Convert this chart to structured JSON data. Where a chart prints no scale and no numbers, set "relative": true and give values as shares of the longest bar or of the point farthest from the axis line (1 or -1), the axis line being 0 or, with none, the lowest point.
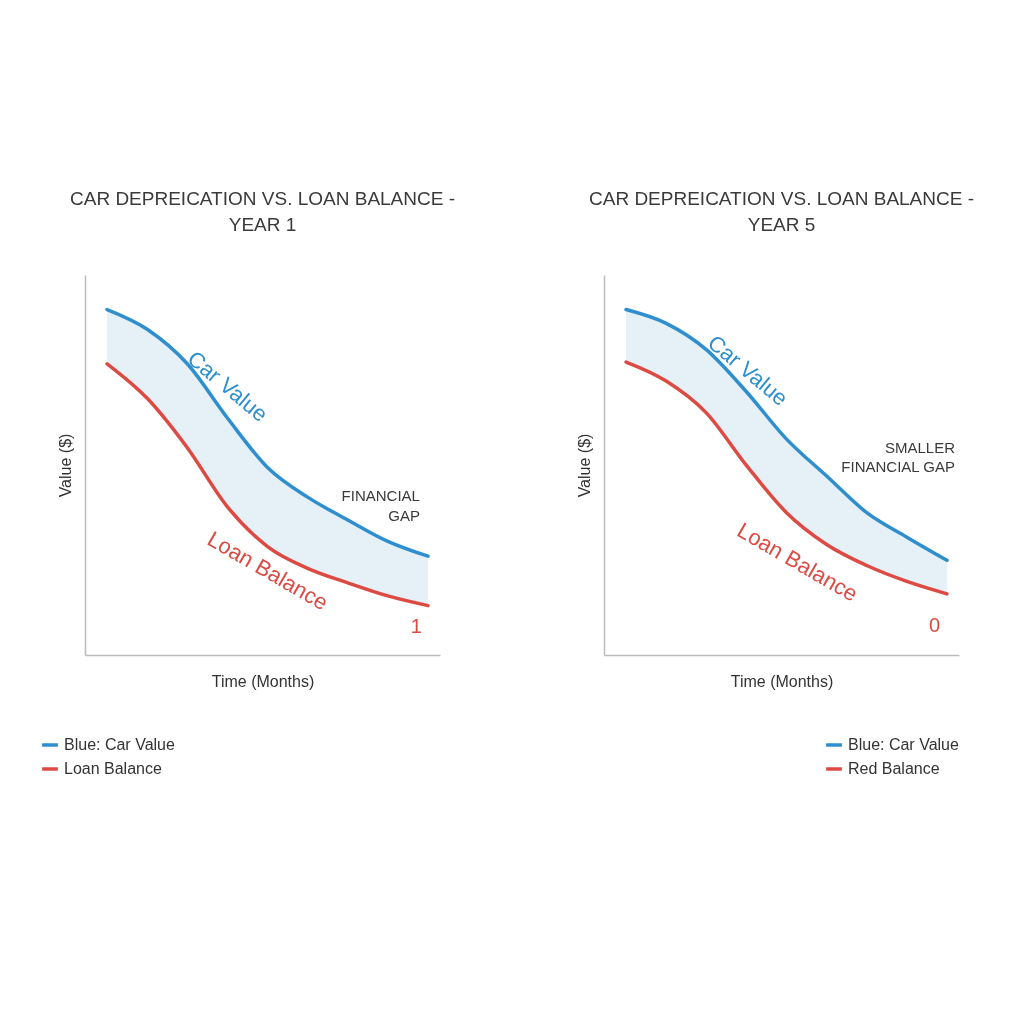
{
  "chart_data": [
    {
      "type": "line",
      "title": "CAR DEPREICATION VS. LOAN BALANCE - YEAR 1",
      "xlabel": "Time (Months)",
      "ylabel": "Value ($)",
      "relative": true,
      "tick_labels": false,
      "grid": false,
      "legend": "bottom left",
      "categories": [
        null,
        null,
        null,
        null,
        null,
        null,
        null,
        null,
        null
      ],
      "series": [
        {
          "name": "Blue: Car Value",
          "color": "#2f8fce",
          "values": [
            1,
            0.943,
            0.843,
            0.686,
            0.543,
            0.457,
            0.391,
            0.329,
            0.286
          ],
          "lower": [
            0.843,
            0.743,
            0.6,
            0.429,
            0.314,
            0.251,
            0.209,
            0.171,
            0.143
          ],
          "upper": [
            1,
            0.943,
            0.843,
            0.686,
            0.543,
            0.457,
            0.391,
            0.329,
            0.286
          ]
        },
        {
          "name": "Loan Balance",
          "color": "#dc4b43",
          "values": [
            0.843,
            0.743,
            0.6,
            0.429,
            0.314,
            0.251,
            0.209,
            0.171,
            0.143
          ]
        }
      ],
      "annotations": [
        "Car Value",
        "Loan Balance",
        "FINANCIAL GAP",
        "1"
      ]
    },
    {
      "type": "line",
      "title": "CAR DEPREICATION VS. LOAN BALANCE - YEAR 5",
      "xlabel": "Time (Months)",
      "ylabel": "Value ($)",
      "relative": true,
      "tick_labels": false,
      "grid": false,
      "legend": "bottom right",
      "categories": [
        null,
        null,
        null,
        null,
        null,
        null,
        null,
        null,
        null
      ],
      "series": [
        {
          "name": "Blue: Car Value",
          "color": "#2f8fce",
          "values": [
            1,
            0.96,
            0.884,
            0.762,
            0.625,
            0.518,
            0.412,
            0.341,
            0.274
          ],
          "lower": [
            0.848,
            0.793,
            0.701,
            0.549,
            0.412,
            0.32,
            0.259,
            0.213,
            0.177
          ],
          "upper": [
            1,
            0.96,
            0.884,
            0.762,
            0.625,
            0.518,
            0.412,
            0.341,
            0.274
          ]
        },
        {
          "name": "Red Balance",
          "color": "#dc4b43",
          "values": [
            0.848,
            0.793,
            0.701,
            0.549,
            0.412,
            0.32,
            0.259,
            0.213,
            0.177
          ]
        }
      ],
      "annotations": [
        "Car Value",
        "Loan Balance",
        "SMALLER FINANCIAL GAP",
        "0"
      ]
    }
  ]
}
